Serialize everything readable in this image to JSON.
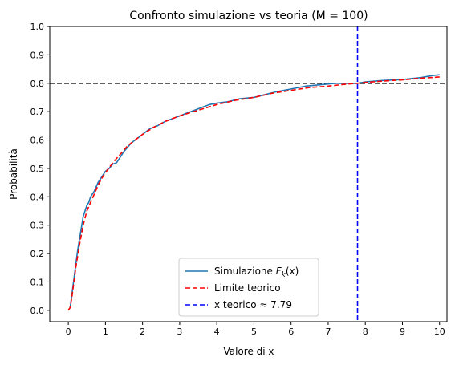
{
  "chart_data": {
    "type": "line",
    "title": "Confronto simulazione vs teoria (M = 100)",
    "xlabel": "Valore di x",
    "ylabel": "Probabilità",
    "xlim": [
      -0.5,
      10.2
    ],
    "ylim": [
      -0.04,
      1.0
    ],
    "xticks": [
      0,
      1,
      2,
      3,
      4,
      5,
      6,
      7,
      8,
      9,
      10
    ],
    "yticks": [
      0.0,
      0.1,
      0.2,
      0.3,
      0.4,
      0.5,
      0.6,
      0.7,
      0.8,
      0.9,
      1.0
    ],
    "grid": false,
    "legend_position": "bottom-center",
    "series": [
      {
        "name": "Simulazione F_k(x)",
        "legend_main": "Simulazione ",
        "legend_math": "F",
        "legend_sub": "k",
        "legend_tail": "(x)",
        "color": "#1f77b4",
        "style": "solid",
        "x": [
          0.0,
          0.05,
          0.1,
          0.15,
          0.2,
          0.25,
          0.3,
          0.35,
          0.4,
          0.45,
          0.5,
          0.55,
          0.6,
          0.7,
          0.8,
          0.9,
          1.0,
          1.1,
          1.2,
          1.3,
          1.4,
          1.5,
          1.6,
          1.7,
          1.8,
          1.9,
          2.0,
          2.1,
          2.2,
          2.4,
          2.6,
          2.8,
          3.0,
          3.2,
          3.4,
          3.6,
          3.8,
          4.0,
          4.3,
          4.6,
          5.0,
          5.3,
          5.6,
          6.0,
          6.4,
          6.8,
          7.2,
          7.6,
          7.8,
          8.0,
          8.5,
          9.0,
          9.5,
          9.8,
          10.0
        ],
        "y": [
          0.0,
          0.01,
          0.06,
          0.11,
          0.16,
          0.21,
          0.25,
          0.29,
          0.33,
          0.35,
          0.37,
          0.38,
          0.4,
          0.42,
          0.45,
          0.47,
          0.49,
          0.5,
          0.515,
          0.52,
          0.54,
          0.56,
          0.575,
          0.59,
          0.6,
          0.61,
          0.62,
          0.63,
          0.64,
          0.65,
          0.665,
          0.675,
          0.685,
          0.695,
          0.705,
          0.715,
          0.725,
          0.73,
          0.735,
          0.745,
          0.75,
          0.76,
          0.77,
          0.78,
          0.79,
          0.795,
          0.8,
          0.8,
          0.8,
          0.805,
          0.81,
          0.813,
          0.82,
          0.827,
          0.83
        ]
      },
      {
        "name": "Limite teorico",
        "color": "#ff0000",
        "style": "dashed",
        "x": [
          0.0,
          0.05,
          0.1,
          0.15,
          0.2,
          0.3,
          0.4,
          0.5,
          0.6,
          0.7,
          0.8,
          0.9,
          1.0,
          1.2,
          1.4,
          1.6,
          1.8,
          2.0,
          2.3,
          2.6,
          3.0,
          3.5,
          4.0,
          4.5,
          5.0,
          5.5,
          6.0,
          6.5,
          7.0,
          7.5,
          7.79,
          8.0,
          8.5,
          9.0,
          9.5,
          10.0
        ],
        "y": [
          0.0,
          0.01,
          0.05,
          0.1,
          0.15,
          0.23,
          0.3,
          0.35,
          0.38,
          0.41,
          0.44,
          0.465,
          0.485,
          0.52,
          0.55,
          0.58,
          0.6,
          0.62,
          0.645,
          0.665,
          0.685,
          0.705,
          0.725,
          0.74,
          0.75,
          0.765,
          0.775,
          0.785,
          0.79,
          0.797,
          0.8,
          0.803,
          0.808,
          0.812,
          0.818,
          0.822
        ]
      }
    ],
    "reference_lines": [
      {
        "orientation": "horizontal",
        "value": 0.8,
        "color": "#000000",
        "style": "dashed"
      },
      {
        "orientation": "vertical",
        "value": 7.79,
        "color": "#0000ff",
        "style": "dashed",
        "name": "x teorico ≈ 7.79"
      }
    ]
  }
}
